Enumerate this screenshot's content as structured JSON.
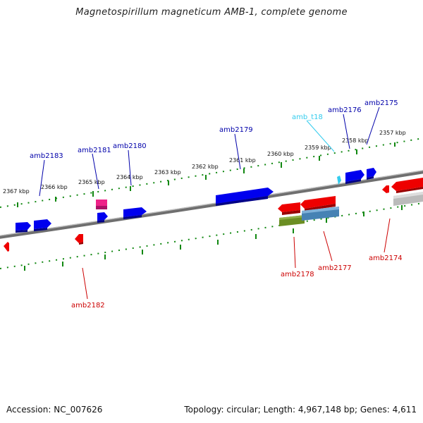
{
  "title": "Magnetospirillum magneticum AMB-1, complete genome",
  "footer": {
    "accession": "Accession: NC_007626",
    "summary": "Topology: circular; Length: 4,967,148 bp; Genes: 4,611"
  },
  "colors": {
    "plus_strand_gene": "#0000ee",
    "minus_strand_gene": "#ee0000",
    "trna": "#33ccee",
    "pink_gene": "#ee2288",
    "olive_gene": "#6b8e23",
    "steelblue_gene": "#4682b4",
    "gray_gene": "#bbbbbb",
    "scale_ticks": "#118811",
    "backbone": "#888888"
  },
  "scale_labels": [
    "2357 kbp",
    "2358 kbp",
    "2359 kbp",
    "2360 kbp",
    "2361 kbp",
    "2362 kbp",
    "2363 kbp",
    "2364 kbp",
    "2365 kbp",
    "2366 kbp",
    "2367 kbp"
  ],
  "gene_labels": [
    {
      "id": "amb2175",
      "strand": "plus"
    },
    {
      "id": "amb2176",
      "strand": "plus"
    },
    {
      "id": "amb_t18",
      "strand": "trna"
    },
    {
      "id": "amb2179",
      "strand": "plus"
    },
    {
      "id": "amb2180",
      "strand": "plus"
    },
    {
      "id": "amb2181",
      "strand": "plus"
    },
    {
      "id": "amb2183",
      "strand": "plus"
    },
    {
      "id": "amb2174",
      "strand": "minus"
    },
    {
      "id": "amb2177",
      "strand": "minus"
    },
    {
      "id": "amb2178",
      "strand": "minus"
    },
    {
      "id": "amb2182",
      "strand": "minus"
    }
  ]
}
